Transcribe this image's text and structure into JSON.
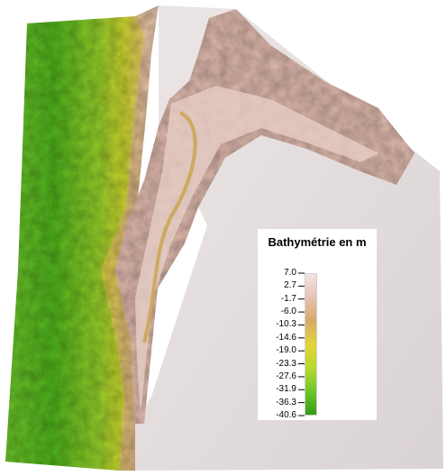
{
  "legend": {
    "title": "Bathymétrie en m",
    "ticks": [
      "7.0",
      "2.7",
      "-1.7",
      "-6.0",
      "-10.3",
      "-14.6",
      "-19.0",
      "-23.3",
      "-27.6",
      "-31.9",
      "-36.3",
      "-40.6"
    ],
    "range": [
      -40.6,
      7.0
    ],
    "colors": [
      "#2e9a14",
      "#6dc62a",
      "#b6d82e",
      "#e2d43a",
      "#d9a96a",
      "#e7c2b4",
      "#f2e6e4"
    ]
  }
}
